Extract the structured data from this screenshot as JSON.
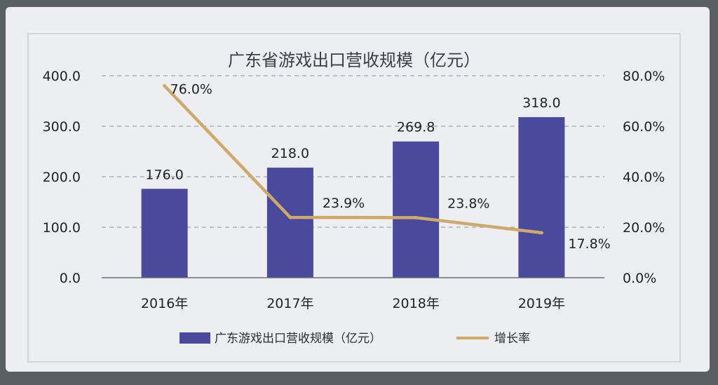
{
  "chart_data": {
    "type": "bar",
    "title": "广东省游戏出口营收规模（亿元）",
    "categories": [
      "2016年",
      "2017年",
      "2018年",
      "2019年"
    ],
    "series": [
      {
        "name": "广东游戏出口营收规模（亿元）",
        "type": "bar",
        "axis": "left",
        "values": [
          176.0,
          218.0,
          269.8,
          318.0
        ],
        "labels": [
          "176.0",
          "218.0",
          "269.8",
          "318.0"
        ],
        "color": "#4a4a9c"
      },
      {
        "name": "增长率",
        "type": "line",
        "axis": "right",
        "values": [
          76.0,
          23.9,
          23.8,
          17.8
        ],
        "labels": [
          "76.0%",
          "23.9%",
          "23.8%",
          "17.8%"
        ],
        "color": "#cfa96a"
      }
    ],
    "ylim_left": [
      0,
      400
    ],
    "ylim_right": [
      0,
      80
    ],
    "left_ticks": [
      "0.0",
      "100.0",
      "200.0",
      "300.0",
      "400.0"
    ],
    "right_ticks": [
      "0.0%",
      "20.0%",
      "40.0%",
      "60.0%",
      "80.0%"
    ],
    "grid": true,
    "legend_position": "bottom"
  }
}
